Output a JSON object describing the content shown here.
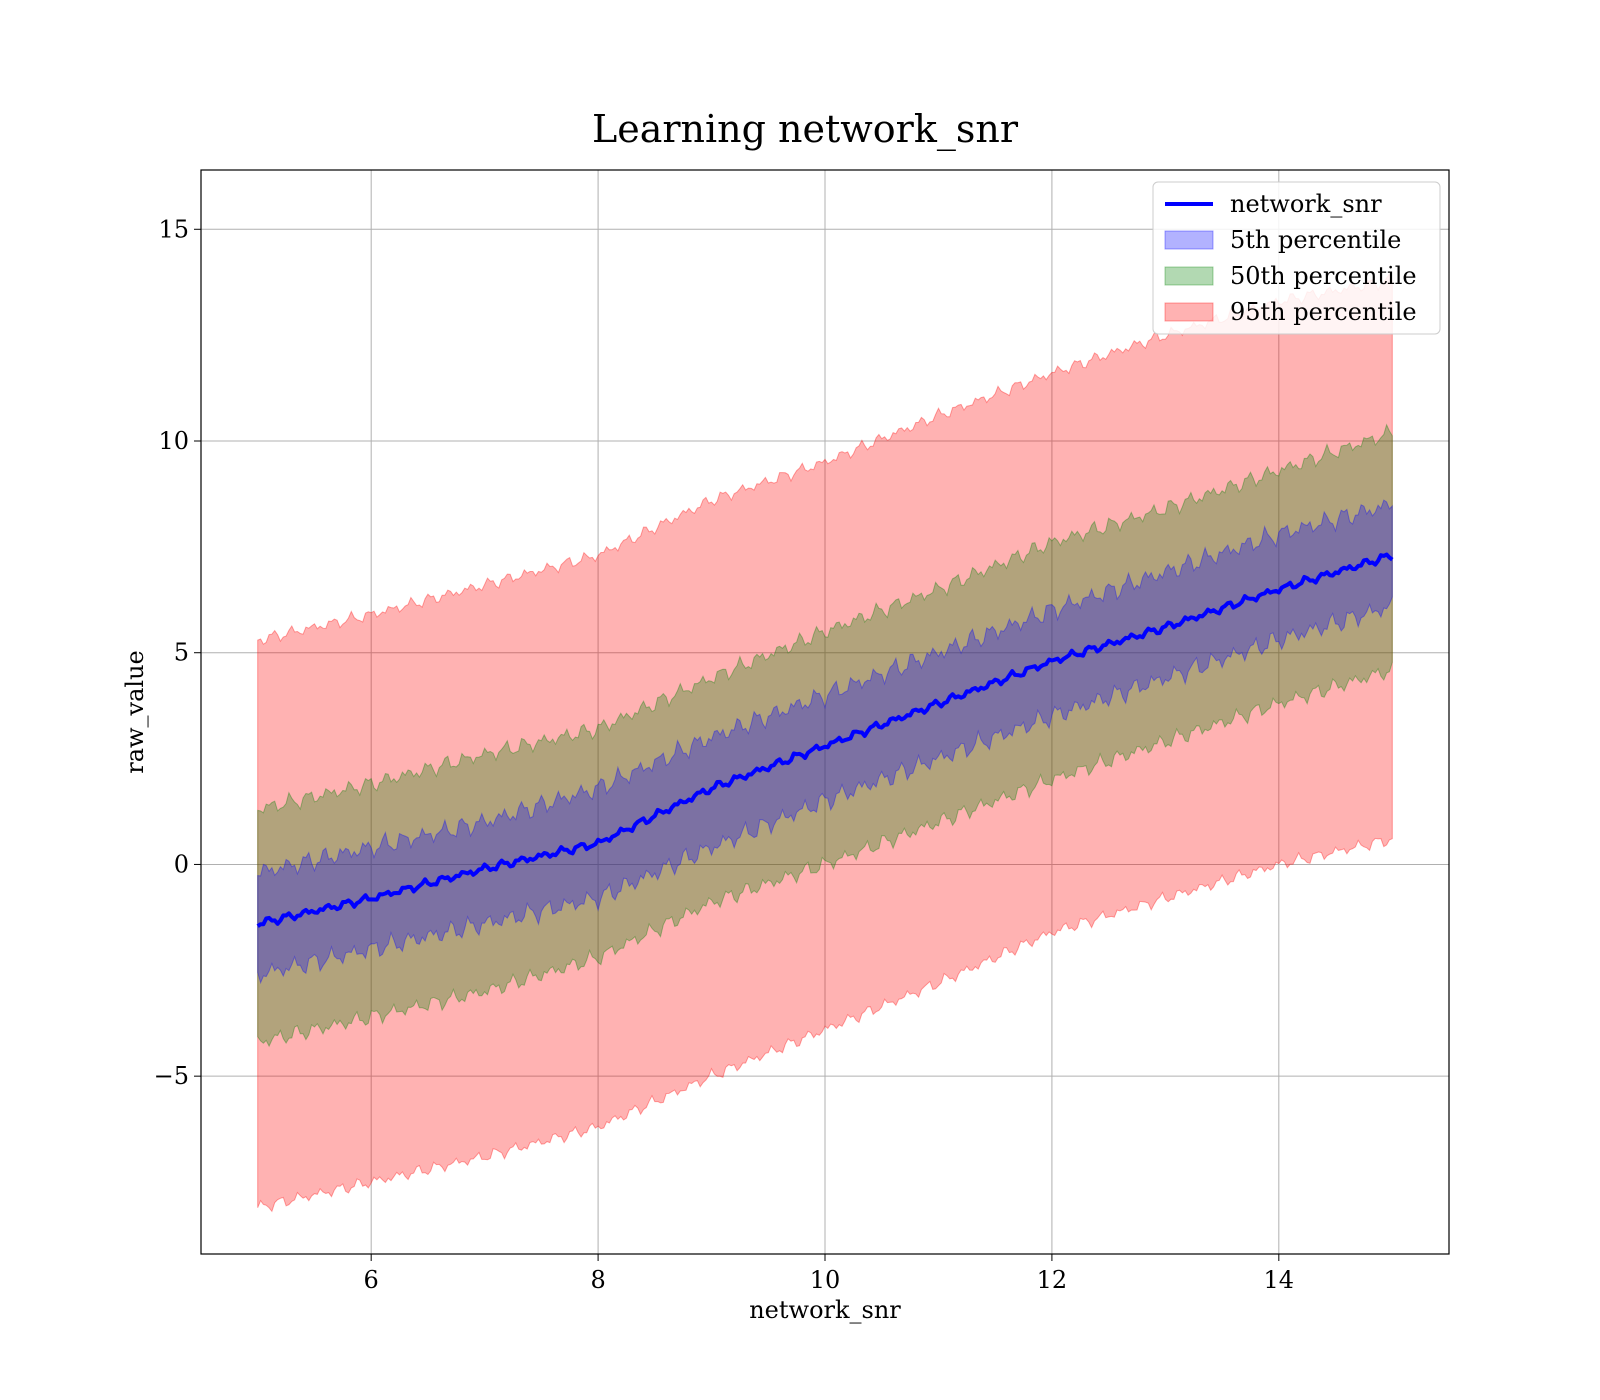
{
  "chart_data": {
    "type": "area",
    "title": "Learning network_snr",
    "xlabel": "network_snr",
    "ylabel": "raw_value",
    "xlim": [
      4.5,
      15.5
    ],
    "ylim": [
      -9.2,
      16.4
    ],
    "xticks": [
      {
        "value": 6,
        "label": "6"
      },
      {
        "value": 8,
        "label": "8"
      },
      {
        "value": 10,
        "label": "10"
      },
      {
        "value": 12,
        "label": "12"
      },
      {
        "value": 14,
        "label": "14"
      }
    ],
    "yticks": [
      {
        "value": -5,
        "label": "−5"
      },
      {
        "value": 0,
        "label": "0"
      },
      {
        "value": 5,
        "label": "5"
      },
      {
        "value": 10,
        "label": "10"
      },
      {
        "value": 15,
        "label": "15"
      }
    ],
    "grid": true,
    "legend_position": "top-right",
    "x": [
      5,
      6,
      7,
      8,
      9,
      10,
      11,
      12,
      13,
      14,
      15
    ],
    "series": [
      {
        "name": "network_snr",
        "kind": "line",
        "color": "#0000ff",
        "values": [
          -1.4,
          -0.8,
          -0.1,
          0.5,
          1.8,
          2.8,
          3.8,
          4.8,
          5.6,
          6.5,
          7.3
        ]
      },
      {
        "name": "5th percentile",
        "kind": "band",
        "color": "#0000ff",
        "lower": [
          -2.6,
          -2.0,
          -1.4,
          -0.8,
          0.4,
          1.5,
          2.5,
          3.5,
          4.4,
          5.3,
          6.1
        ],
        "upper": [
          -0.2,
          0.4,
          1.0,
          1.8,
          3.0,
          4.0,
          5.0,
          6.0,
          6.9,
          7.8,
          8.5
        ]
      },
      {
        "name": "50th percentile",
        "kind": "band",
        "color": "#008000",
        "lower": [
          -4.2,
          -3.6,
          -3.0,
          -2.2,
          -0.9,
          0.0,
          1.0,
          2.0,
          2.9,
          3.8,
          4.6
        ],
        "upper": [
          1.3,
          1.9,
          2.6,
          3.2,
          4.4,
          5.5,
          6.5,
          7.6,
          8.4,
          9.3,
          10.2
        ]
      },
      {
        "name": "95th percentile",
        "kind": "band",
        "color": "#ff0000",
        "lower": [
          -8.1,
          -7.5,
          -6.9,
          -6.2,
          -5.0,
          -3.9,
          -2.8,
          -1.6,
          -0.8,
          0.0,
          0.6
        ],
        "upper": [
          5.3,
          5.9,
          6.6,
          7.3,
          8.6,
          9.5,
          10.6,
          11.6,
          12.5,
          13.3,
          13.8
        ]
      }
    ]
  }
}
